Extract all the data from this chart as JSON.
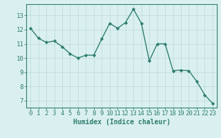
{
  "x": [
    0,
    1,
    2,
    3,
    4,
    5,
    6,
    7,
    8,
    9,
    10,
    11,
    12,
    13,
    14,
    15,
    16,
    17,
    18,
    19,
    20,
    21,
    22,
    23
  ],
  "y": [
    12.1,
    11.4,
    11.1,
    11.2,
    10.8,
    10.3,
    10.0,
    10.2,
    10.2,
    11.35,
    12.45,
    12.1,
    12.5,
    13.45,
    12.45,
    9.8,
    11.0,
    11.0,
    9.1,
    9.15,
    9.1,
    8.35,
    7.4,
    6.8
  ],
  "line_color": "#2e7d6e",
  "marker": "D",
  "markersize": 2.2,
  "linewidth": 1.0,
  "bg_color": "#daf0f0",
  "grid_color": "#b8d8d8",
  "xlabel": "Humidex (Indice chaleur)",
  "xlabel_fontsize": 7,
  "xtick_labels": [
    "0",
    "1",
    "2",
    "3",
    "4",
    "5",
    "6",
    "7",
    "8",
    "9",
    "10",
    "11",
    "12",
    "13",
    "14",
    "15",
    "16",
    "17",
    "18",
    "19",
    "20",
    "21",
    "22",
    "23"
  ],
  "ytick_labels": [
    "7",
    "8",
    "9",
    "10",
    "11",
    "12",
    "13"
  ],
  "ylim": [
    6.5,
    13.8
  ],
  "xlim": [
    -0.5,
    23.5
  ],
  "tick_color": "#2e7d6e",
  "tick_fontsize": 6.5,
  "spine_color": "#2e7d6e",
  "grid_major_color": "#c8d8d8",
  "grid_minor_color": "#dde8e8"
}
